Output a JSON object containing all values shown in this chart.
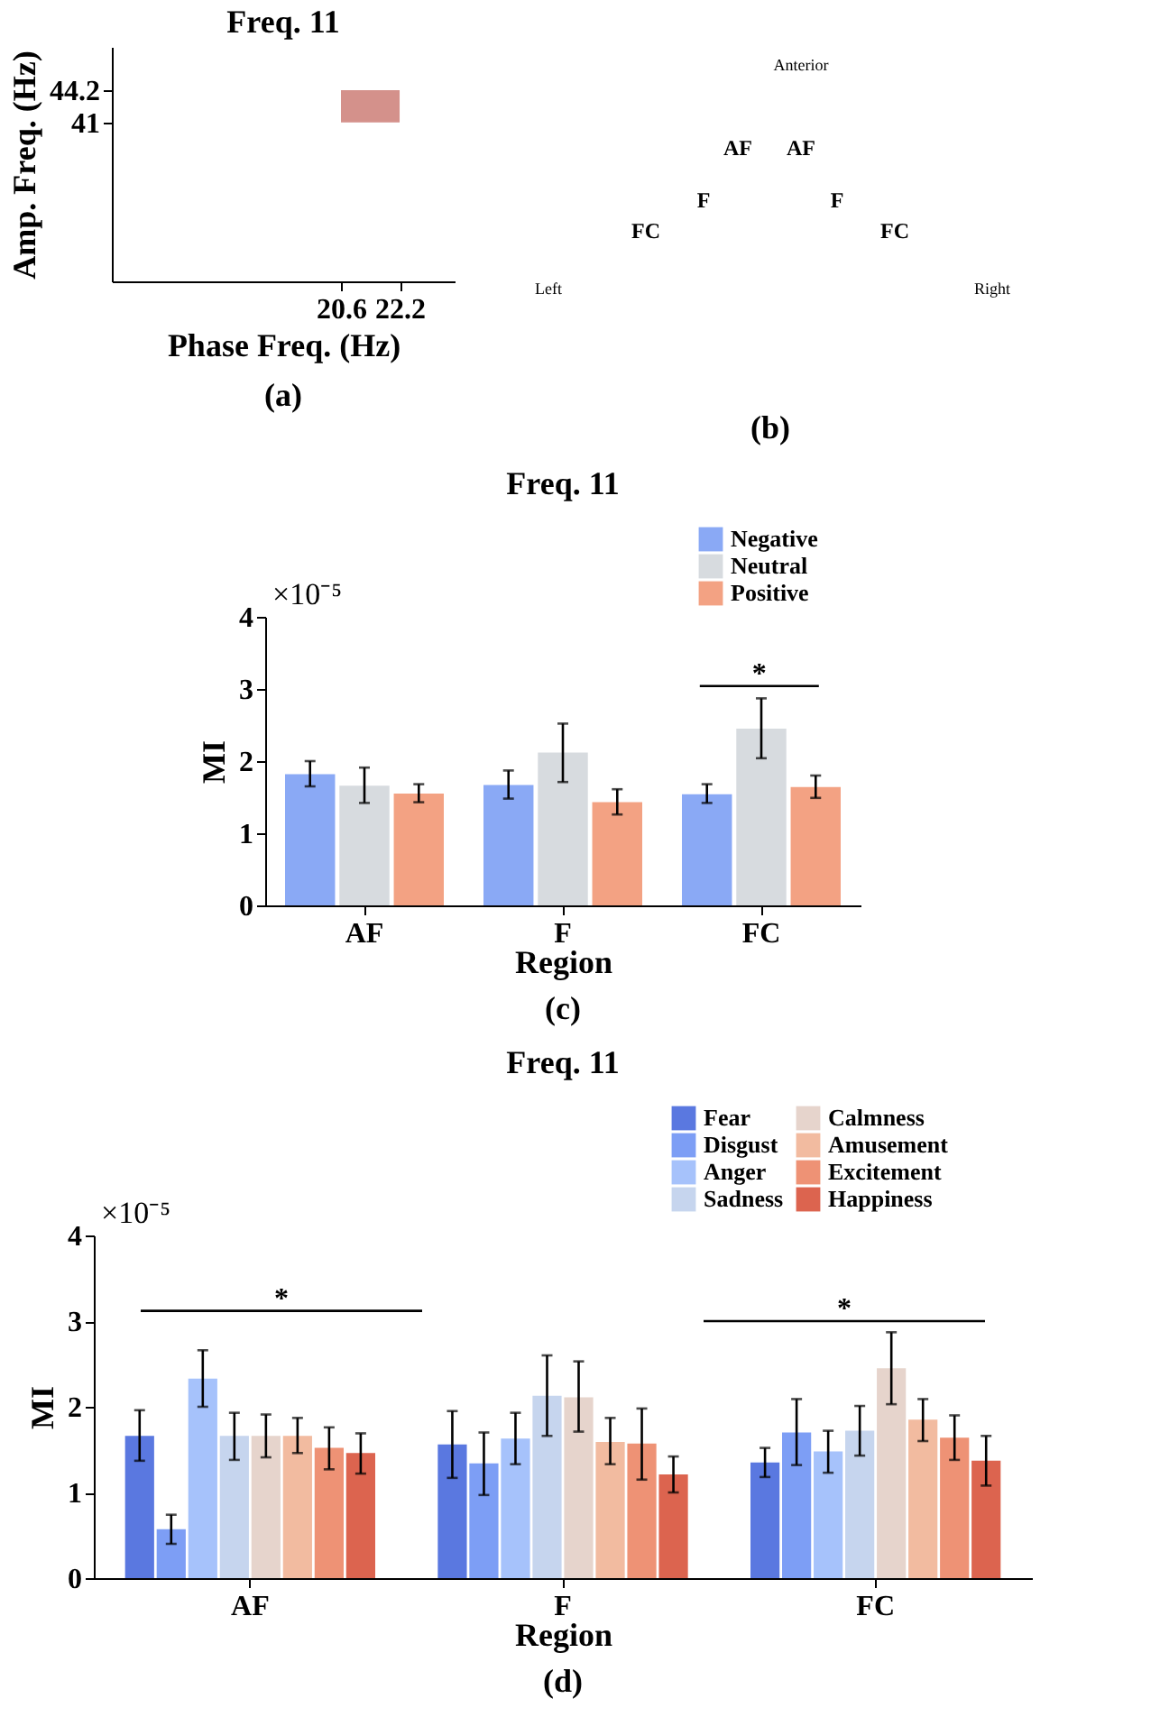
{
  "chart_data": [
    {
      "type": "bar",
      "title": "Freq. 11",
      "xlabel": "Phase Freq. (Hz)",
      "ylabel": "Amp. Freq. (Hz)",
      "xlim": [
        14.35,
        23.7
      ],
      "ylim": [
        25.2,
        48.5
      ],
      "xticks": [
        20.6,
        22.2
      ],
      "yticks": [
        41,
        44.2
      ],
      "series": [
        {
          "color": "#d4918b",
          "x": [
            21.4
          ],
          "base": [
            41
          ],
          "values": [
            3.2
          ]
        }
      ],
      "annotations": [
        "(a)"
      ]
    },
    {
      "type": "other",
      "annotations": [
        "Anterior",
        "Left",
        "Right",
        "AF",
        "AF",
        "F",
        "F",
        "FC",
        "FC",
        "(b)"
      ]
    },
    {
      "type": "bar",
      "title": "Freq. 11",
      "xlabel": "Region",
      "ylabel": "MI",
      "categories": [
        "AF",
        "F",
        "FC"
      ],
      "ylim": [
        0,
        4
      ],
      "yticks": [
        0,
        1,
        2,
        3,
        4
      ],
      "grid": false,
      "legend": "top right",
      "series": [
        {
          "name": "Negative",
          "color": "#8aa9f5",
          "values": [
            1.82,
            1.67,
            1.54
          ],
          "errors": [
            [
              1.65,
              2.0
            ],
            [
              1.48,
              1.87
            ],
            [
              1.42,
              1.68
            ]
          ]
        },
        {
          "name": "Neutral",
          "color": "#d7dbdf",
          "values": [
            1.66,
            2.12,
            2.45
          ],
          "errors": [
            [
              1.42,
              1.91
            ],
            [
              1.71,
              2.52
            ],
            [
              2.04,
              2.87
            ]
          ]
        },
        {
          "name": "Positive",
          "color": "#f3a283",
          "values": [
            1.55,
            1.43,
            1.64
          ],
          "errors": [
            [
              1.43,
              1.68
            ],
            [
              1.26,
              1.61
            ],
            [
              1.49,
              1.8
            ]
          ]
        }
      ],
      "annotations": [
        "×10⁻⁵",
        "*",
        "(c)"
      ]
    },
    {
      "type": "bar",
      "title": "Freq. 11",
      "xlabel": "Region",
      "ylabel": "MI",
      "categories": [
        "AF",
        "F",
        "FC"
      ],
      "ylim": [
        0,
        4
      ],
      "yticks": [
        0,
        1,
        2,
        3,
        4
      ],
      "grid": false,
      "legend": "top right",
      "series": [
        {
          "name": "Fear",
          "color": "#5a78e0",
          "values": [
            1.66,
            1.56,
            1.35
          ],
          "errors": [
            [
              1.37,
              1.96
            ],
            [
              1.17,
              1.95
            ],
            [
              1.18,
              1.52
            ]
          ]
        },
        {
          "name": "Disgust",
          "color": "#7d9ef5",
          "values": [
            0.57,
            1.34,
            1.7
          ],
          "errors": [
            [
              0.4,
              0.74
            ],
            [
              0.97,
              1.7
            ],
            [
              1.32,
              2.09
            ]
          ]
        },
        {
          "name": "Anger",
          "color": "#a6c2fb",
          "values": [
            2.33,
            1.63,
            1.48
          ],
          "errors": [
            [
              2.0,
              2.66
            ],
            [
              1.33,
              1.93
            ],
            [
              1.23,
              1.72
            ]
          ]
        },
        {
          "name": "Sadness",
          "color": "#c6d5ee",
          "values": [
            1.66,
            2.13,
            1.72
          ],
          "errors": [
            [
              1.38,
              1.93
            ],
            [
              1.66,
              2.6
            ],
            [
              1.43,
              2.01
            ]
          ]
        },
        {
          "name": "Calmness",
          "color": "#e6d4cc",
          "values": [
            1.66,
            2.11,
            2.45
          ],
          "errors": [
            [
              1.41,
              1.91
            ],
            [
              1.71,
              2.53
            ],
            [
              2.03,
              2.87
            ]
          ]
        },
        {
          "name": "Amusement",
          "color": "#f2bba0",
          "values": [
            1.66,
            1.59,
            1.85
          ],
          "errors": [
            [
              1.46,
              1.87
            ],
            [
              1.33,
              1.87
            ],
            [
              1.6,
              2.09
            ]
          ]
        },
        {
          "name": "Excitement",
          "color": "#ee9275",
          "values": [
            1.52,
            1.57,
            1.64
          ],
          "errors": [
            [
              1.27,
              1.76
            ],
            [
              1.15,
              1.98
            ],
            [
              1.38,
              1.9
            ]
          ]
        },
        {
          "name": "Happiness",
          "color": "#dc644f",
          "values": [
            1.46,
            1.21,
            1.37
          ],
          "errors": [
            [
              1.22,
              1.69
            ],
            [
              1.0,
              1.42
            ],
            [
              1.08,
              1.66
            ]
          ]
        }
      ],
      "annotations": [
        "×10⁻⁵",
        "*",
        "*",
        "(d)"
      ]
    }
  ]
}
